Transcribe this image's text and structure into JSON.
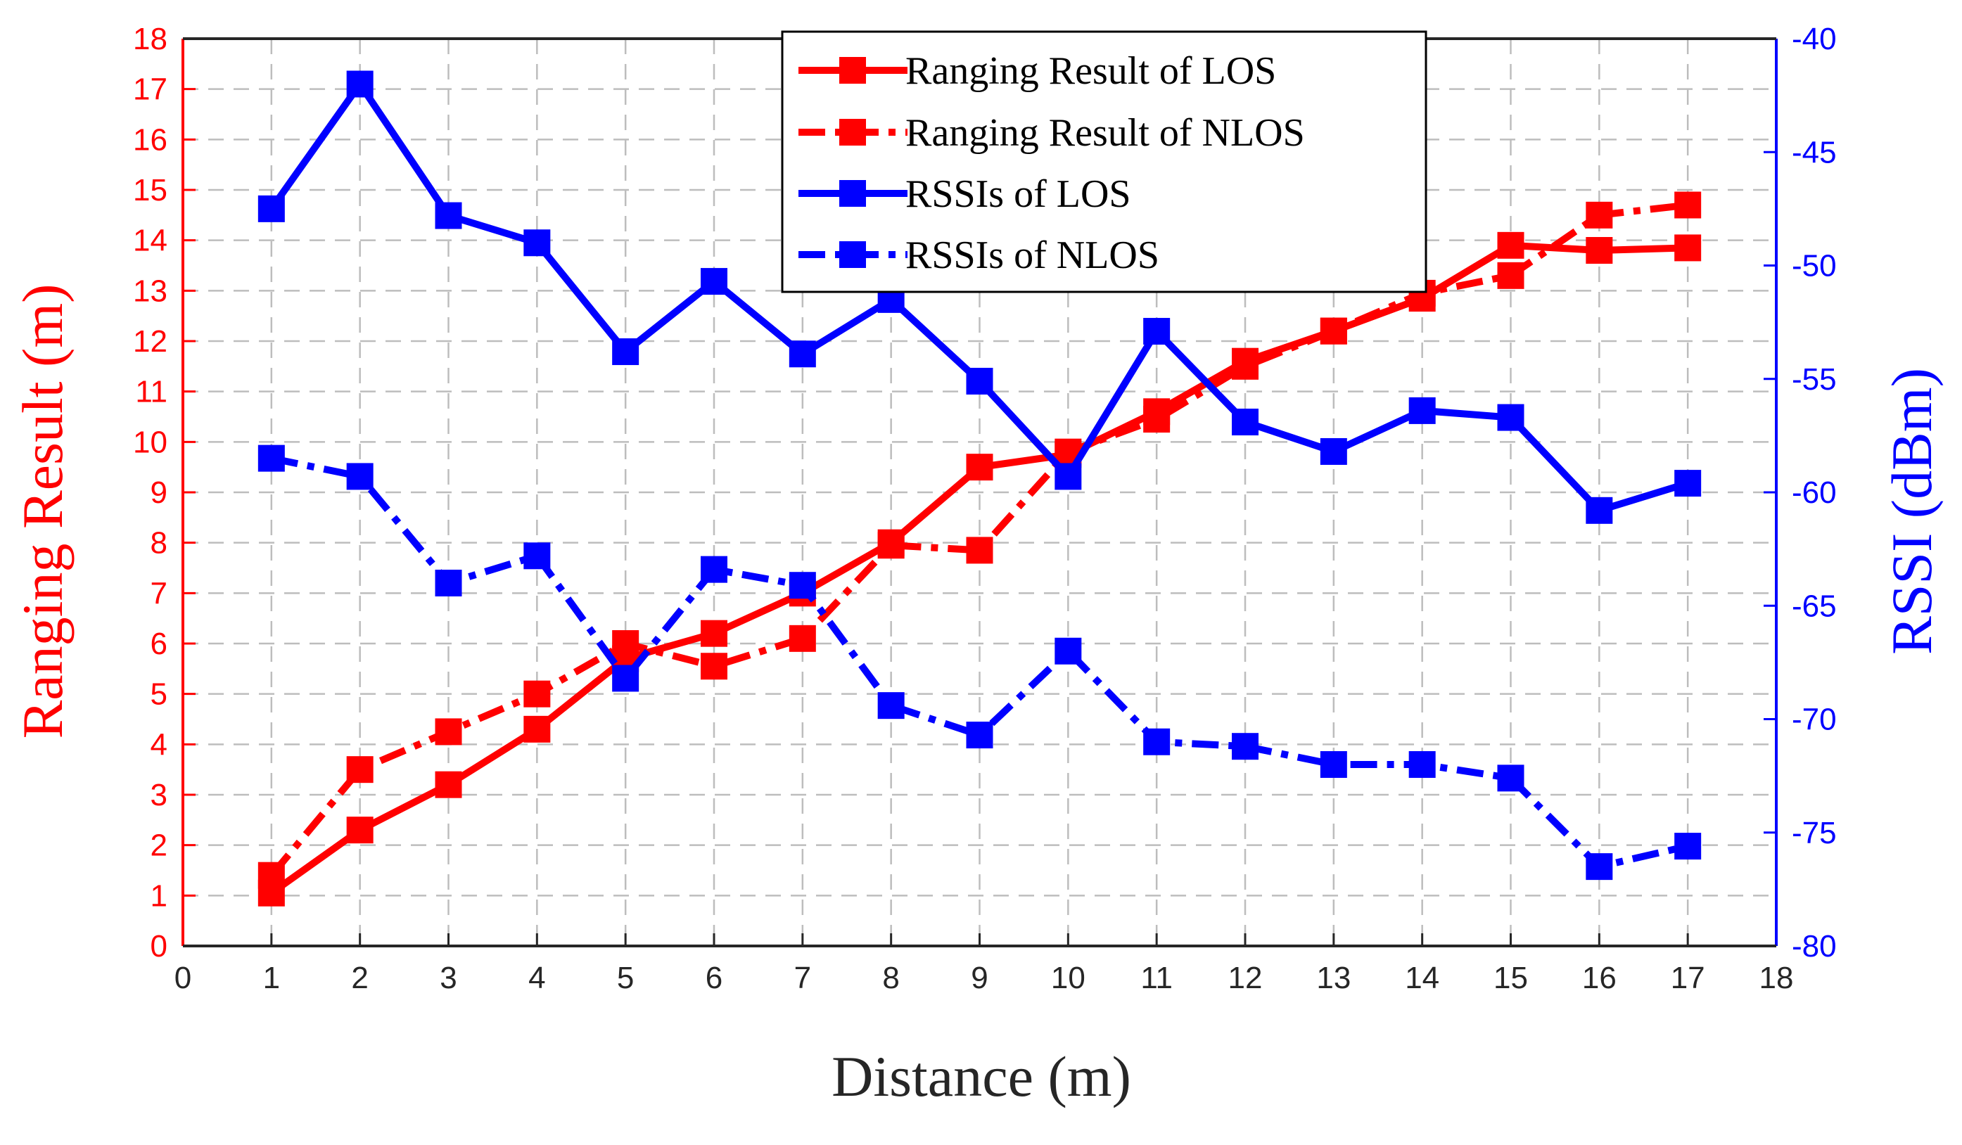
{
  "chart_data": {
    "type": "line",
    "xlabel": "Distance (m)",
    "ylabel_left": "Ranging Result (m)",
    "ylabel_right": "RSSI (dBm)",
    "xlim": [
      0,
      18
    ],
    "ylim_left": [
      0,
      18
    ],
    "ylim_right": [
      -80,
      -40
    ],
    "x_ticks": [
      "0",
      "1",
      "2",
      "3",
      "4",
      "5",
      "6",
      "7",
      "8",
      "9",
      "10",
      "11",
      "12",
      "13",
      "14",
      "15",
      "16",
      "17",
      "18"
    ],
    "y_left_ticks": [
      "0",
      "1",
      "2",
      "3",
      "4",
      "5",
      "6",
      "7",
      "8",
      "9",
      "10",
      "11",
      "12",
      "13",
      "14",
      "15",
      "16",
      "17",
      "18"
    ],
    "y_right_ticks": [
      "-80",
      "-75",
      "-70",
      "-65",
      "-60",
      "-55",
      "-50",
      "-45",
      "-40"
    ],
    "grid": true,
    "legend_position": "top-center",
    "x": [
      1,
      2,
      3,
      4,
      5,
      6,
      7,
      8,
      9,
      10,
      11,
      12,
      13,
      14,
      15,
      16,
      17
    ],
    "series": [
      {
        "name": "Ranging Result of LOS",
        "axis": "left",
        "color": "#ff0000",
        "line": "solid",
        "values": [
          1.05,
          2.3,
          3.2,
          4.3,
          5.7,
          6.2,
          7.0,
          8.0,
          9.5,
          9.75,
          10.6,
          11.6,
          12.2,
          12.85,
          13.9,
          13.8,
          13.85
        ]
      },
      {
        "name": "Ranging Result of NLOS",
        "axis": "left",
        "color": "#ff0000",
        "line": "dashdot",
        "values": [
          1.4,
          3.5,
          4.25,
          5.0,
          6.0,
          5.55,
          6.1,
          7.95,
          7.85,
          9.8,
          10.45,
          11.5,
          12.2,
          12.95,
          13.3,
          14.5,
          14.7
        ]
      },
      {
        "name": "RSSIs of LOS",
        "axis": "right",
        "color": "#0000ff",
        "line": "solid",
        "values": [
          -47.5,
          -42.0,
          -47.8,
          -49.0,
          -53.8,
          -50.7,
          -53.9,
          -51.5,
          -55.1,
          -59.3,
          -52.9,
          -56.9,
          -58.2,
          -56.4,
          -56.7,
          -60.8,
          -59.6
        ]
      },
      {
        "name": "RSSIs of NLOS",
        "axis": "right",
        "color": "#0000ff",
        "line": "dashdot",
        "values": [
          -58.5,
          -59.3,
          -64.0,
          -62.8,
          -68.2,
          -63.4,
          -64.1,
          -69.4,
          -70.7,
          -67.0,
          -71.0,
          -71.2,
          -72.0,
          -72.0,
          -72.6,
          -76.5,
          -75.6
        ]
      }
    ]
  }
}
